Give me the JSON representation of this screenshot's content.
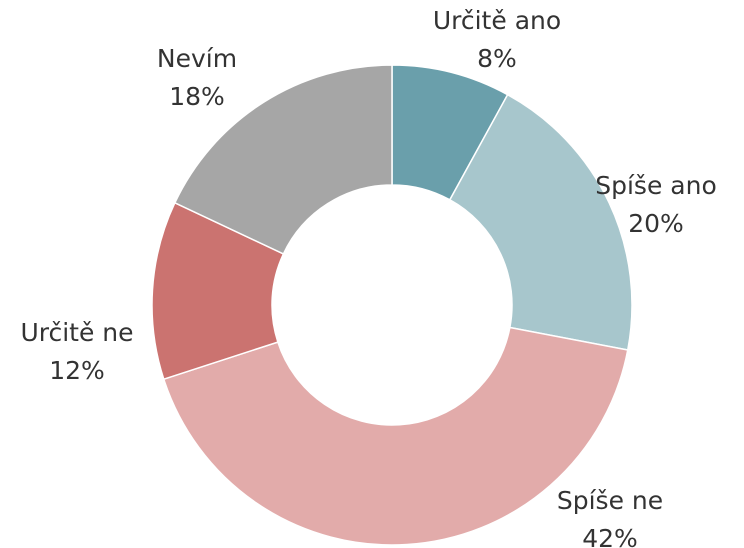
{
  "chart_data": {
    "type": "donut",
    "categories": [
      "Určitě ano",
      "Spíše ano",
      "Spíše ne",
      "Určitě ne",
      "Nevím"
    ],
    "values": [
      8,
      20,
      42,
      12,
      18
    ],
    "value_labels": [
      "8%",
      "20%",
      "42%",
      "12%",
      "18%"
    ],
    "colors": [
      "#6a9fab",
      "#a7c6cc",
      "#e2abaa",
      "#cb7370",
      "#a6a6a6"
    ]
  }
}
